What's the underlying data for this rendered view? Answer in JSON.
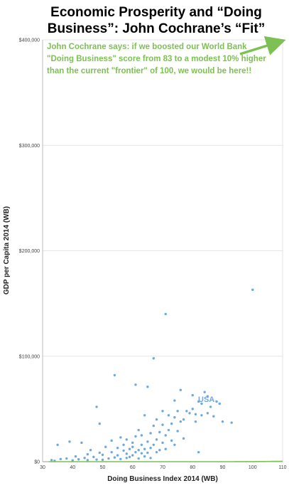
{
  "chart_data": {
    "type": "scatter",
    "title": "Economic Prosperity and “Doing Business”: John Cochrane’s “Fit”",
    "xlabel": "Doing Business Index 2014 (WB)",
    "ylabel": "GDP per Capita 2014 (WB)",
    "xlim": [
      30,
      110
    ],
    "ylim": [
      0,
      400000
    ],
    "x_ticks": [
      30,
      40,
      50,
      60,
      70,
      80,
      90,
      100,
      110
    ],
    "y_ticks": [
      0,
      100000,
      200000,
      300000,
      400000
    ],
    "y_tick_labels": [
      "$0",
      "$100,000",
      "$200,000",
      "$300,000",
      "$400,000"
    ],
    "grid": true,
    "annotation": "John Cochrane says: if we boosted our World Bank \"Doing Business\" score from 83 to a modest 10% higher than the current \"frontier\" of 100, we would be here!!",
    "point_label": {
      "text": "USA",
      "x": 83,
      "y": 55000
    },
    "fit_curve": {
      "color": "#7dc053",
      "a": 2.19e-05,
      "b": 0.1521
    },
    "arrow_target": {
      "x": 110,
      "y": 400000
    },
    "colors": {
      "points": "#6fa8dc",
      "fit": "#7dc053",
      "annotation": "#7dc053"
    },
    "points": [
      [
        33,
        1500
      ],
      [
        34,
        800
      ],
      [
        35,
        16000
      ],
      [
        36,
        2500
      ],
      [
        38,
        3000
      ],
      [
        39,
        19000
      ],
      [
        40,
        1200
      ],
      [
        41,
        5000
      ],
      [
        42,
        2200
      ],
      [
        43,
        18000
      ],
      [
        44,
        3500
      ],
      [
        45,
        1500
      ],
      [
        45,
        7000
      ],
      [
        46,
        11000
      ],
      [
        47,
        4500
      ],
      [
        48,
        52000
      ],
      [
        48,
        2000
      ],
      [
        49,
        8500
      ],
      [
        49,
        36000
      ],
      [
        50,
        1800
      ],
      [
        50,
        6500
      ],
      [
        51,
        14000
      ],
      [
        52,
        3000
      ],
      [
        53,
        9000
      ],
      [
        53,
        20000
      ],
      [
        54,
        82000
      ],
      [
        54,
        4000
      ],
      [
        55,
        13000
      ],
      [
        55,
        6000
      ],
      [
        56,
        23000
      ],
      [
        56,
        2500
      ],
      [
        57,
        10500
      ],
      [
        57,
        16000
      ],
      [
        58,
        3500
      ],
      [
        58,
        21000
      ],
      [
        58,
        7500
      ],
      [
        59,
        12000
      ],
      [
        59,
        4500
      ],
      [
        60,
        18000
      ],
      [
        60,
        6000
      ],
      [
        60,
        14000
      ],
      [
        61,
        73000
      ],
      [
        61,
        9000
      ],
      [
        61,
        24000
      ],
      [
        62,
        11000
      ],
      [
        62,
        3000
      ],
      [
        62,
        30000
      ],
      [
        63,
        16000
      ],
      [
        63,
        8000
      ],
      [
        63,
        25000
      ],
      [
        64,
        12000
      ],
      [
        64,
        44000
      ],
      [
        64,
        5000
      ],
      [
        65,
        71000
      ],
      [
        65,
        19000
      ],
      [
        65,
        8500
      ],
      [
        66,
        27000
      ],
      [
        66,
        13000
      ],
      [
        66,
        3500
      ],
      [
        67,
        98000
      ],
      [
        67,
        34000
      ],
      [
        67,
        16000
      ],
      [
        68,
        21000
      ],
      [
        68,
        9000
      ],
      [
        68,
        40000
      ],
      [
        69,
        28000
      ],
      [
        69,
        11000
      ],
      [
        70,
        35000
      ],
      [
        70,
        18000
      ],
      [
        70,
        48000
      ],
      [
        71,
        140000
      ],
      [
        71,
        25000
      ],
      [
        71,
        12000
      ],
      [
        72,
        44000
      ],
      [
        72,
        30000
      ],
      [
        73,
        20000
      ],
      [
        73,
        36000
      ],
      [
        74,
        58000
      ],
      [
        74,
        42000
      ],
      [
        74,
        16000
      ],
      [
        75,
        48000
      ],
      [
        75,
        29000
      ],
      [
        76,
        68000
      ],
      [
        76,
        38000
      ],
      [
        77,
        40000
      ],
      [
        77,
        22000
      ],
      [
        78,
        48000
      ],
      [
        79,
        46000
      ],
      [
        80,
        63000
      ],
      [
        80,
        50000
      ],
      [
        81,
        45000
      ],
      [
        81,
        38000
      ],
      [
        82,
        9000
      ],
      [
        82,
        57000
      ],
      [
        83,
        55000
      ],
      [
        83,
        44000
      ],
      [
        84,
        66000
      ],
      [
        85,
        62000
      ],
      [
        85,
        46000
      ],
      [
        86,
        52000
      ],
      [
        87,
        43000
      ],
      [
        88,
        57000
      ],
      [
        89,
        55000
      ],
      [
        90,
        38000
      ],
      [
        93,
        37000
      ],
      [
        100,
        163000
      ]
    ]
  }
}
